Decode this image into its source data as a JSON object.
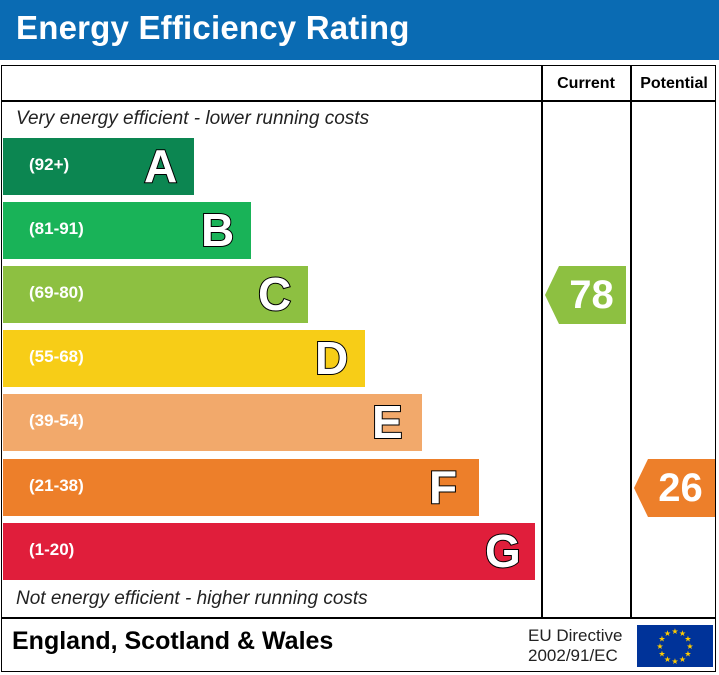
{
  "title": "Energy Efficiency Rating",
  "columns": {
    "current": "Current",
    "potential": "Potential"
  },
  "top_caption": "Very energy efficient - lower running costs",
  "bottom_caption": "Not energy efficient - higher running costs",
  "footer": {
    "region": "England, Scotland & Wales",
    "directive_line1": "EU Directive",
    "directive_line2": "2002/91/EC"
  },
  "chart_data": {
    "type": "bar",
    "categories": [
      "A",
      "B",
      "C",
      "D",
      "E",
      "F",
      "G"
    ],
    "ranges": [
      "(92+)",
      "(81-91)",
      "(69-80)",
      "(55-68)",
      "(39-54)",
      "(21-38)",
      "(1-20)"
    ],
    "colors": [
      "#0c8651",
      "#19b358",
      "#8dc041",
      "#f7cd17",
      "#f2a96b",
      "#ed7f2a",
      "#e01e3b"
    ],
    "current": {
      "value": "78",
      "band": "C",
      "color": "#8dc041"
    },
    "potential": {
      "value": "26",
      "band": "F",
      "color": "#ed7f2a"
    }
  }
}
